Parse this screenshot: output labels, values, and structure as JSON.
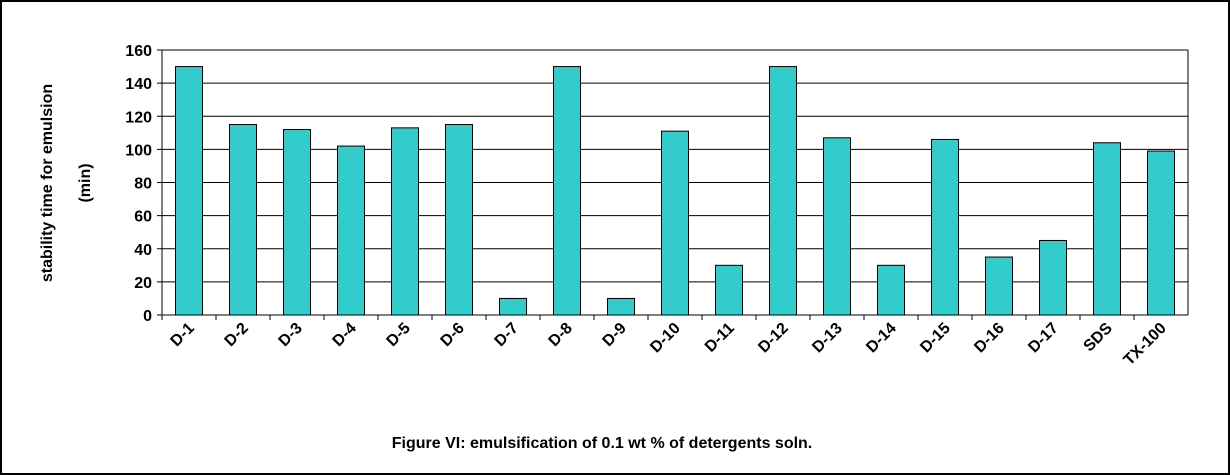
{
  "chart_data": {
    "type": "bar",
    "title": "Figure VI: emulsification of 0.1 wt % of detergents soln.",
    "y_label": [
      "stability time for emulsion",
      "(min)"
    ],
    "categories": [
      "D-1",
      "D-2",
      "D-3",
      "D-4",
      "D-5",
      "D-6",
      "D-7",
      "D-8",
      "D-9",
      "D-10",
      "D-11",
      "D-12",
      "D-13",
      "D-14",
      "D-15",
      "D-16",
      "D-17",
      "SDS",
      "TX-100"
    ],
    "values": [
      150,
      115,
      112,
      102,
      113,
      115,
      10,
      150,
      10,
      111,
      30,
      150,
      107,
      30,
      106,
      35,
      45,
      104,
      99
    ],
    "color": "#33cccc",
    "ylim": [
      0,
      160
    ],
    "yticks": [
      0,
      20,
      40,
      60,
      80,
      100,
      120,
      140,
      160
    ],
    "grid": true
  }
}
